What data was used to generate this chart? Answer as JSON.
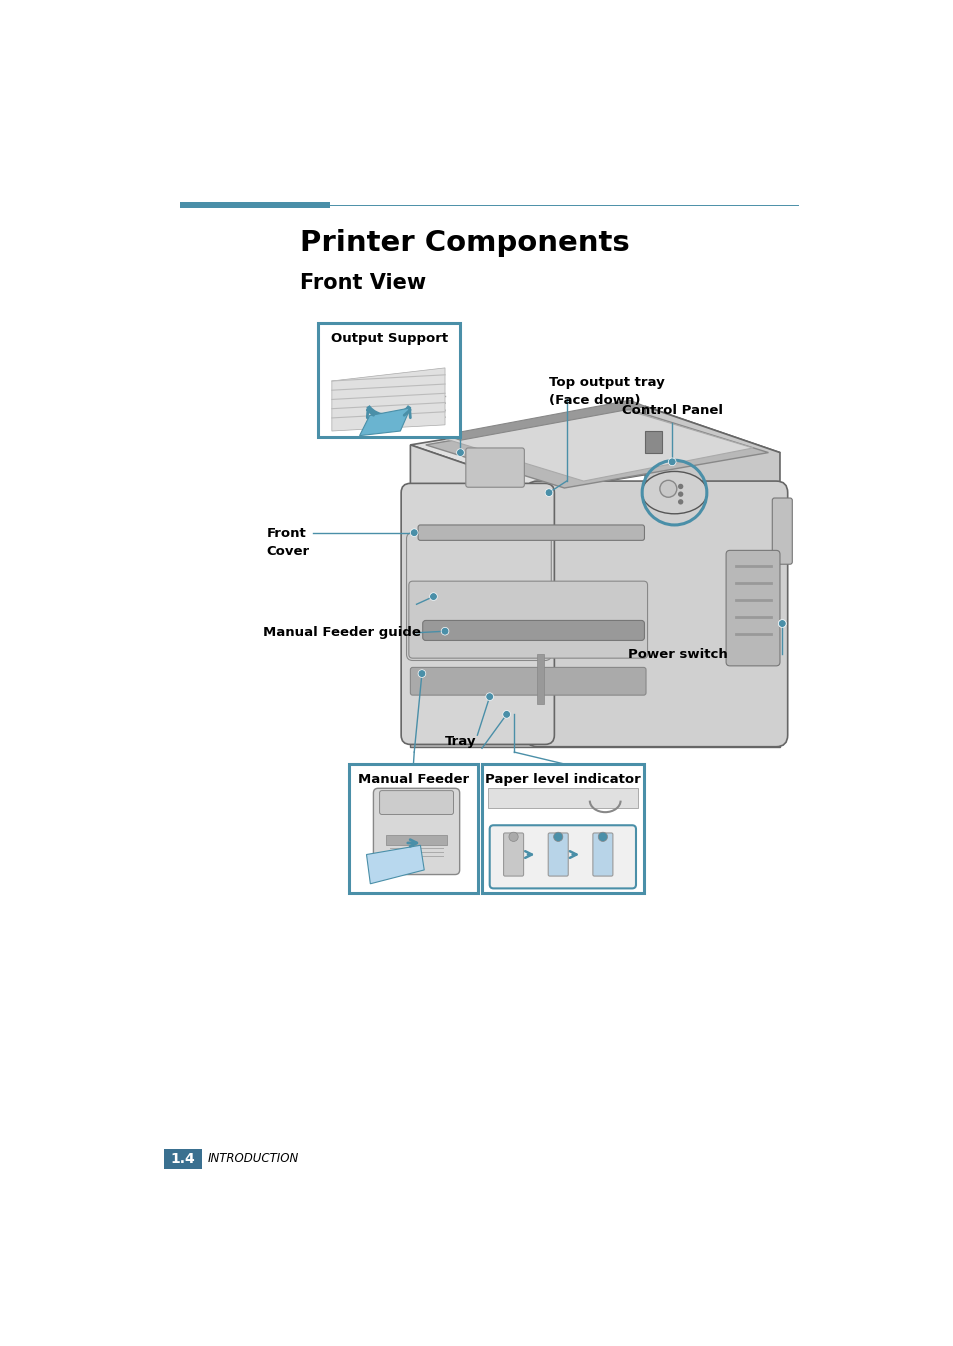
{
  "title": "Printer Components",
  "subtitle": "Front View",
  "bg_color": "#ffffff",
  "title_color": "#000000",
  "teal_color": "#4a8fa8",
  "teal_dark": "#3a7090",
  "footer_text": "1.4",
  "footer_label": "INTRODUCTION",
  "labels": {
    "output_support": "Output Support",
    "top_output_tray": "Top output tray\n(Face down)",
    "control_panel": "Control Panel",
    "front_cover": "Front\nCover",
    "manual_feeder_guide": "Manual Feeder guide",
    "tray": "Tray",
    "power_switch": "Power switch",
    "manual_feeder": "Manual Feeder",
    "paper_level_indicator": "Paper level indicator"
  },
  "printer": {
    "body_light": "#d4d4d4",
    "body_mid": "#c0c0c0",
    "body_dark": "#a8a8a8",
    "body_edge": "#666666",
    "top_face": "#e0e0e0",
    "recessed": "#b0b0b0"
  }
}
